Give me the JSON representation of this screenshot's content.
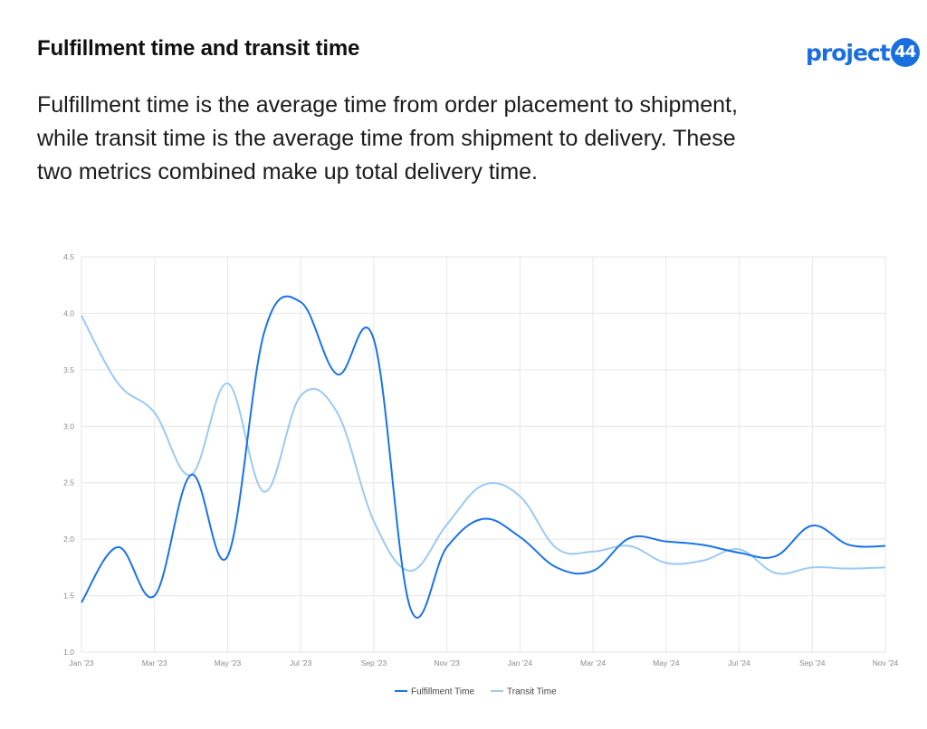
{
  "header": {
    "title": "Fulfillment time and transit time",
    "subtitle": "Fulfillment time is the average time from order placement to shipment, while transit time is the average time from shipment to delivery. These two metrics combined make up total delivery time.",
    "logo_text": "project",
    "logo_number": "44"
  },
  "colors": {
    "fulfillment": "#1a73e8",
    "transit": "#9ccaf2",
    "grid": "#e6e6e6",
    "brand": "#1a6fe0"
  },
  "chart_data": {
    "type": "line",
    "x": [
      "Jan '23",
      "Feb '23",
      "Mar '23",
      "Apr '23",
      "May '23",
      "Jun '23",
      "Jul '23",
      "Aug '23",
      "Sep '23",
      "Oct '23",
      "Nov '23",
      "Dec '23",
      "Jan '24",
      "Feb '24",
      "Mar '24",
      "Apr '24",
      "May '24",
      "Jun '24",
      "Jul '24",
      "Aug '24",
      "Sep '24",
      "Oct '24",
      "Nov '24"
    ],
    "xtick_labels": [
      "Jan '23",
      "Mar '23",
      "May '23",
      "Jul '23",
      "Sep '23",
      "Nov '23",
      "Jan '24",
      "Mar '24",
      "May '24",
      "Jul '24",
      "Sep '24",
      "Nov '24"
    ],
    "ylim": [
      1.0,
      4.5
    ],
    "yticks": [
      "1.0",
      "1.5",
      "2.0",
      "2.5",
      "3.0",
      "3.5",
      "4.0",
      "4.5"
    ],
    "grid": true,
    "legend_position": "bottom-center",
    "series": [
      {
        "name": "Fulfillment Time",
        "values": [
          1.44,
          1.93,
          1.5,
          2.57,
          1.85,
          3.83,
          4.1,
          3.46,
          3.77,
          1.39,
          1.93,
          2.18,
          2.02,
          1.75,
          1.72,
          2.01,
          1.98,
          1.95,
          1.88,
          1.85,
          2.12,
          1.95,
          1.94
        ]
      },
      {
        "name": "Transit Time",
        "values": [
          3.98,
          3.38,
          3.12,
          2.57,
          3.38,
          2.42,
          3.27,
          3.12,
          2.16,
          1.72,
          2.13,
          2.48,
          2.38,
          1.92,
          1.89,
          1.94,
          1.79,
          1.81,
          1.91,
          1.7,
          1.75,
          1.74,
          1.75
        ]
      }
    ]
  }
}
